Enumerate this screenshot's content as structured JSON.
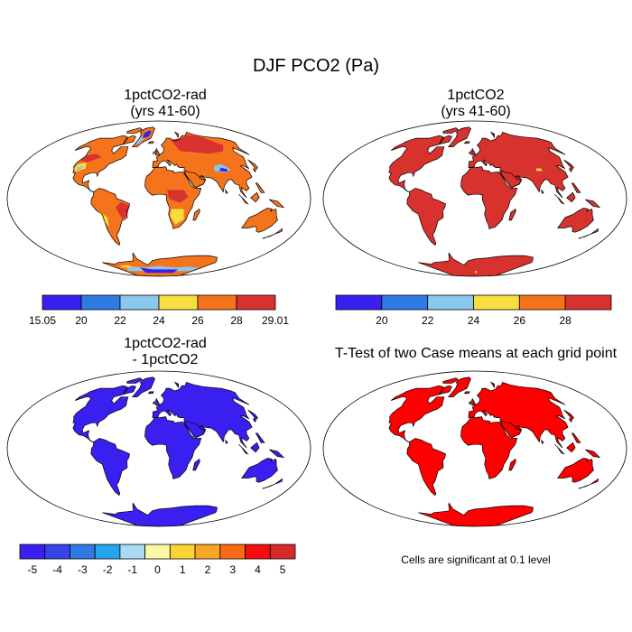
{
  "figure": {
    "title": "DJF PCO2 (Pa)",
    "panels": [
      {
        "id": "p1",
        "title_line1": "1pctCO2-rad",
        "title_line2": "(yrs 41-60)"
      },
      {
        "id": "p2",
        "title_line1": "1pctCO2",
        "title_line2": "(yrs 41-60)"
      },
      {
        "id": "p3",
        "title_line1": "1pctCO2-rad",
        "title_line2": "- 1pctCO2"
      },
      {
        "id": "p4",
        "title_line1": "T-Test of two Case means at each grid point",
        "title_line2": ""
      }
    ],
    "note": "Cells are significant at 0.1 level"
  },
  "colorbars": {
    "cb1": {
      "colors": [
        "#3a20f0",
        "#2f7ae3",
        "#88c8ec",
        "#f8dd3e",
        "#f5731b",
        "#d8322e"
      ],
      "labels": [
        "15.05",
        "20",
        "22",
        "24",
        "26",
        "28",
        "29.01"
      ]
    },
    "cb2": {
      "colors": [
        "#3a20f0",
        "#2f7ae3",
        "#88c8ec",
        "#f8dd3e",
        "#f5731b",
        "#d8322e"
      ],
      "labels": [
        "20",
        "22",
        "24",
        "26",
        "28"
      ]
    },
    "cb3": {
      "colors": [
        "#3a20f0",
        "#3544e8",
        "#2f7ae3",
        "#25a6ec",
        "#a9d9f3",
        "#fbf8a3",
        "#fbd433",
        "#f9a623",
        "#f86b15",
        "#f50e0e",
        "#d62a28"
      ],
      "labels": [
        "-5",
        "-4",
        "-3",
        "-2",
        "-1",
        "0",
        "1",
        "2",
        "3",
        "4",
        "5"
      ]
    }
  },
  "map_colors": {
    "land_p1_base": "#f5731b",
    "land_p1_high": "#d8322e",
    "land_p1_mid": "#f8dd3e",
    "land_p1_low": "#88c8ec",
    "land_p1_min": "#3a20f0",
    "land_p2": "#d8322e",
    "land_p2_patch": "#f8dd3e",
    "land_p3": "#3a20f0",
    "land_p4": "#ff0000",
    "ocean": "#ffffff",
    "coast": "#000000"
  }
}
